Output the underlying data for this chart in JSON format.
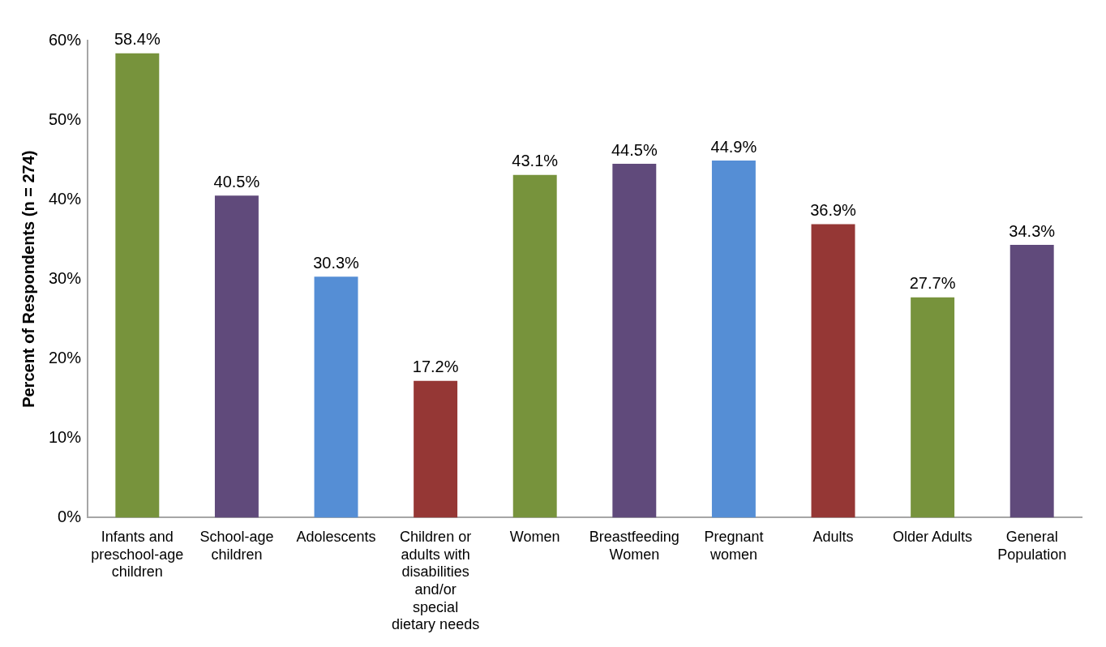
{
  "chart_data": {
    "type": "bar",
    "ylabel": "Percent of Respondents (n = 274)",
    "categories": [
      "Infants and preschool-age children",
      "School-age children",
      "Adolescents",
      "Children or adults with disabilities and/or special dietary needs",
      "Women",
      "Breastfeeding Women",
      "Pregnant women",
      "Adults",
      "Older Adults",
      "General Population"
    ],
    "values": [
      58.4,
      40.5,
      30.3,
      17.2,
      43.1,
      44.5,
      44.9,
      36.9,
      27.7,
      34.3
    ],
    "colors": [
      "#77933c",
      "#604a7b",
      "#558ed5",
      "#953735",
      "#77933c",
      "#604a7b",
      "#558ed5",
      "#953735",
      "#77933c",
      "#604a7b"
    ],
    "value_labels": [
      "58.4%",
      "40.5%",
      "30.3%",
      "17.2%",
      "43.1%",
      "44.5%",
      "44.9%",
      "36.9%",
      "27.7%",
      "34.3%"
    ],
    "ylim": [
      0,
      60
    ],
    "yticks": [
      {
        "value": 0,
        "label": "0%"
      },
      {
        "value": 10,
        "label": "10%"
      },
      {
        "value": 20,
        "label": "20%"
      },
      {
        "value": 30,
        "label": "30%"
      },
      {
        "value": 40,
        "label": "40%"
      },
      {
        "value": 50,
        "label": "50%"
      },
      {
        "value": 60,
        "label": "60%"
      }
    ],
    "grid": false,
    "legend": false
  }
}
